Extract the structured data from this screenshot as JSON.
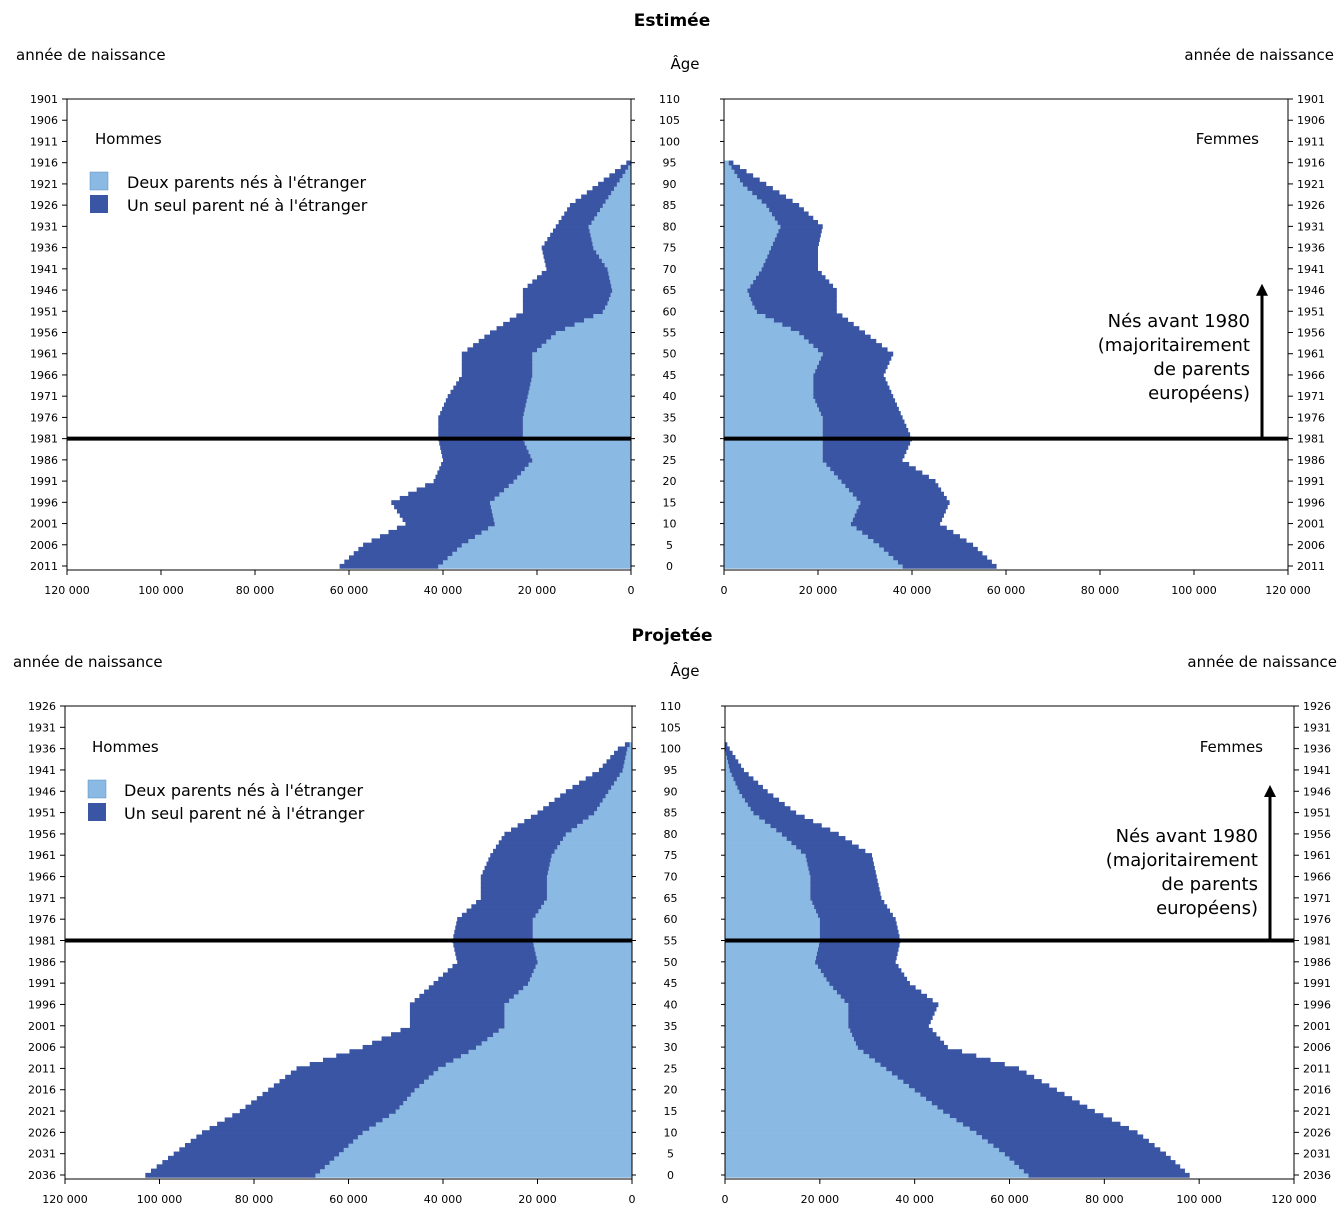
{
  "colors": {
    "two_parents": "#8ab9e3",
    "one_parent": "#3a55a4",
    "line": "#000000"
  },
  "labels": {
    "birth_year_left": "année de naissance",
    "birth_year_right": "année de naissance",
    "age": "Âge",
    "men": "Hommes",
    "women": "Femmes",
    "legend_two": "Deux parents nés à l'étranger",
    "legend_one": "Un seul parent né à l'étranger",
    "note_lines": [
      "Nés avant 1980",
      "(majoritairement",
      "de parents",
      "européens)"
    ]
  },
  "chart_data": [
    {
      "type": "bar",
      "title": "Estimée",
      "xlabel": "",
      "ylabel": "Âge",
      "xlim": [
        0,
        120000
      ],
      "x_ticks": [
        "120 000",
        "100 000",
        "80 000",
        "60 000",
        "40 000",
        "20 000",
        "0"
      ],
      "x_ticks_women": [
        "0",
        "20 000",
        "40 000",
        "60 000",
        "80 000",
        "100 000",
        "120 000"
      ],
      "age_ticks": [
        "110",
        "105",
        "100",
        "95",
        "90",
        "85",
        "80",
        "75",
        "70",
        "65",
        "60",
        "55",
        "50",
        "45",
        "40",
        "35",
        "30",
        "25",
        "20",
        "15",
        "10",
        "5",
        "0"
      ],
      "birth_year_ticks": [
        "1901",
        "1906",
        "1911",
        "1916",
        "1921",
        "1926",
        "1931",
        "1936",
        "1941",
        "1946",
        "1951",
        "1956",
        "1961",
        "1966",
        "1971",
        "1976",
        "1981",
        "1986",
        "1991",
        "1996",
        "2001",
        "2006",
        "2011"
      ],
      "reference_age": 30,
      "note_arrow_age_top": 66,
      "series": [
        {
          "name": "Deux parents nés à l'étranger",
          "sex": "Hommes",
          "ages": [
            0,
            5,
            10,
            15,
            20,
            25,
            30,
            35,
            40,
            45,
            50,
            55,
            60,
            62,
            65,
            70,
            75,
            80,
            85,
            90,
            95,
            96
          ],
          "values": [
            41000,
            36000,
            29000,
            30000,
            25000,
            21000,
            23000,
            23000,
            22000,
            21000,
            21000,
            16000,
            6000,
            5000,
            4000,
            5000,
            8000,
            9000,
            6000,
            3000,
            0,
            0
          ]
        },
        {
          "name": "Un seul parent né à l'étranger",
          "sex": "Hommes",
          "ages": [
            0,
            5,
            10,
            15,
            20,
            25,
            30,
            35,
            40,
            45,
            50,
            55,
            60,
            62,
            65,
            70,
            75,
            80,
            85,
            90,
            95,
            96
          ],
          "values": [
            21000,
            21000,
            19000,
            21000,
            17000,
            19000,
            18000,
            18000,
            17000,
            15000,
            15000,
            14000,
            17000,
            18000,
            19000,
            13000,
            11000,
            7000,
            7000,
            4000,
            1000,
            0
          ]
        },
        {
          "name": "Deux parents nés à l'étranger",
          "sex": "Femmes",
          "ages": [
            0,
            5,
            10,
            15,
            20,
            25,
            30,
            35,
            40,
            45,
            50,
            55,
            60,
            62,
            65,
            70,
            75,
            80,
            85,
            90,
            95,
            96
          ],
          "values": [
            38000,
            33000,
            27000,
            29000,
            25000,
            21000,
            21000,
            21000,
            19000,
            19000,
            21000,
            16000,
            7000,
            6000,
            5000,
            8000,
            10000,
            12000,
            9000,
            4000,
            1000,
            0
          ]
        },
        {
          "name": "Un seul parent né à l'étranger",
          "sex": "Femmes",
          "ages": [
            0,
            5,
            10,
            15,
            20,
            25,
            30,
            35,
            40,
            45,
            50,
            55,
            60,
            62,
            65,
            70,
            75,
            80,
            85,
            90,
            95,
            96
          ],
          "values": [
            20000,
            20000,
            19000,
            19000,
            20000,
            17000,
            19000,
            17000,
            17000,
            15000,
            15000,
            14000,
            17000,
            18000,
            19000,
            12000,
            10000,
            9000,
            7000,
            5000,
            1000,
            0
          ]
        }
      ]
    },
    {
      "type": "bar",
      "title": "Projetée",
      "xlabel": "",
      "ylabel": "Âge",
      "xlim": [
        0,
        120000
      ],
      "x_ticks": [
        "120 000",
        "100 000",
        "80 000",
        "60 000",
        "40 000",
        "20 000",
        "0"
      ],
      "x_ticks_women": [
        "0",
        "20 000",
        "40 000",
        "60 000",
        "80 000",
        "100 000",
        "120 000"
      ],
      "age_ticks": [
        "110",
        "105",
        "100",
        "95",
        "90",
        "85",
        "80",
        "75",
        "70",
        "65",
        "60",
        "55",
        "50",
        "45",
        "40",
        "35",
        "30",
        "25",
        "20",
        "15",
        "10",
        "5",
        "0"
      ],
      "birth_year_ticks": [
        "1926",
        "1931",
        "1936",
        "1941",
        "1946",
        "1951",
        "1956",
        "1961",
        "1966",
        "1971",
        "1976",
        "1981",
        "1986",
        "1991",
        "1996",
        "2001",
        "2006",
        "2011",
        "2016",
        "2021",
        "2026",
        "2031",
        "2036"
      ],
      "reference_age": 55,
      "note_arrow_age_top": 91,
      "series": [
        {
          "name": "Deux parents nés à l'étranger",
          "sex": "Hommes",
          "ages": [
            0,
            5,
            10,
            15,
            20,
            25,
            30,
            35,
            40,
            45,
            50,
            55,
            60,
            65,
            70,
            75,
            80,
            85,
            90,
            95,
            100,
            102
          ],
          "values": [
            67000,
            62000,
            57000,
            50000,
            46000,
            41000,
            33000,
            27000,
            27000,
            22000,
            20000,
            21000,
            21000,
            18000,
            18000,
            17000,
            14000,
            8000,
            5000,
            2000,
            1000,
            0
          ]
        },
        {
          "name": "Un seul parent né à l'étranger",
          "sex": "Hommes",
          "ages": [
            0,
            5,
            10,
            15,
            20,
            25,
            30,
            35,
            40,
            45,
            50,
            55,
            60,
            65,
            70,
            75,
            80,
            85,
            90,
            95,
            100,
            102
          ],
          "values": [
            36000,
            35000,
            34000,
            33000,
            31000,
            30000,
            24000,
            20000,
            20000,
            20000,
            17000,
            17000,
            16000,
            14000,
            14000,
            13000,
            13000,
            12000,
            9000,
            5000,
            2000,
            0
          ]
        },
        {
          "name": "Deux parents nés à l'étranger",
          "sex": "Femmes",
          "ages": [
            0,
            5,
            10,
            15,
            20,
            25,
            30,
            35,
            40,
            45,
            50,
            55,
            60,
            65,
            70,
            75,
            80,
            85,
            90,
            95,
            100,
            102
          ],
          "values": [
            64000,
            59000,
            53000,
            46000,
            40000,
            34000,
            28000,
            26000,
            26000,
            22000,
            19000,
            20000,
            20000,
            18000,
            18000,
            17000,
            12000,
            6000,
            3000,
            1000,
            0,
            0
          ]
        },
        {
          "name": "Un seul parent né à l'étranger",
          "sex": "Femmes",
          "ages": [
            0,
            5,
            10,
            15,
            20,
            25,
            30,
            35,
            40,
            45,
            50,
            55,
            60,
            65,
            70,
            75,
            80,
            85,
            90,
            95,
            100,
            102
          ],
          "values": [
            34000,
            34000,
            34000,
            32000,
            30000,
            28000,
            19000,
            17000,
            19000,
            17000,
            17000,
            17000,
            16000,
            15000,
            14000,
            14000,
            12000,
            9000,
            6000,
            3000,
            1000,
            0
          ]
        }
      ]
    }
  ]
}
